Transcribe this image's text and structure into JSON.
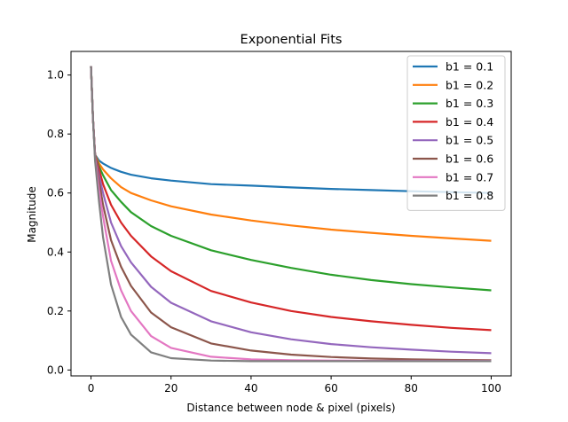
{
  "chart_data": {
    "type": "line",
    "title": "Exponential Fits",
    "xlabel": "Distance between node & pixel (pixels)",
    "ylabel": "Magnitude",
    "xlim": [
      -5,
      105
    ],
    "ylim": [
      -0.02,
      1.08
    ],
    "xticks": [
      0,
      20,
      40,
      60,
      80,
      100
    ],
    "yticks": [
      0.0,
      0.2,
      0.4,
      0.6,
      0.8,
      1.0
    ],
    "xtick_labels": [
      "0",
      "20",
      "40",
      "60",
      "80",
      "100"
    ],
    "ytick_labels": [
      "0.0",
      "0.2",
      "0.4",
      "0.6",
      "0.8",
      "1.0"
    ],
    "grid": false,
    "legend_position": "top-right",
    "x": [
      0,
      0.5,
      1,
      2,
      3,
      5,
      7.5,
      10,
      15,
      20,
      30,
      40,
      50,
      60,
      70,
      80,
      90,
      100
    ],
    "series": [
      {
        "name": "b1 = 0.1",
        "color": "#1f77b4",
        "values": [
          1.03,
          0.85,
          0.73,
          0.71,
          0.7,
          0.685,
          0.672,
          0.662,
          0.65,
          0.642,
          0.63,
          0.625,
          0.619,
          0.614,
          0.61,
          0.606,
          0.603,
          0.6
        ]
      },
      {
        "name": "b1 = 0.2",
        "color": "#ff7f0e",
        "values": [
          1.03,
          0.85,
          0.73,
          0.7,
          0.68,
          0.65,
          0.62,
          0.6,
          0.575,
          0.555,
          0.527,
          0.507,
          0.49,
          0.476,
          0.465,
          0.455,
          0.446,
          0.438
        ]
      },
      {
        "name": "b1 = 0.3",
        "color": "#2ca02c",
        "values": [
          1.03,
          0.85,
          0.73,
          0.69,
          0.66,
          0.61,
          0.57,
          0.535,
          0.488,
          0.455,
          0.406,
          0.373,
          0.346,
          0.323,
          0.305,
          0.291,
          0.28,
          0.27
        ]
      },
      {
        "name": "b1 = 0.4",
        "color": "#d62728",
        "values": [
          1.03,
          0.85,
          0.73,
          0.68,
          0.63,
          0.56,
          0.5,
          0.455,
          0.385,
          0.335,
          0.268,
          0.229,
          0.2,
          0.18,
          0.165,
          0.153,
          0.143,
          0.135
        ]
      },
      {
        "name": "b1 = 0.5",
        "color": "#9467bd",
        "values": [
          1.03,
          0.85,
          0.73,
          0.66,
          0.6,
          0.5,
          0.42,
          0.365,
          0.282,
          0.228,
          0.165,
          0.128,
          0.104,
          0.088,
          0.077,
          0.069,
          0.062,
          0.057
        ]
      },
      {
        "name": "b1 = 0.6",
        "color": "#8c564b",
        "values": [
          1.03,
          0.85,
          0.73,
          0.64,
          0.56,
          0.44,
          0.35,
          0.285,
          0.195,
          0.145,
          0.09,
          0.066,
          0.052,
          0.044,
          0.039,
          0.036,
          0.034,
          0.033
        ]
      },
      {
        "name": "b1 = 0.7",
        "color": "#e377c2",
        "values": [
          1.03,
          0.85,
          0.72,
          0.61,
          0.52,
          0.37,
          0.27,
          0.2,
          0.115,
          0.075,
          0.045,
          0.036,
          0.033,
          0.032,
          0.031,
          0.031,
          0.031,
          0.031
        ]
      },
      {
        "name": "b1 = 0.8",
        "color": "#7f7f7f",
        "values": [
          1.03,
          0.85,
          0.71,
          0.57,
          0.45,
          0.29,
          0.18,
          0.12,
          0.06,
          0.04,
          0.032,
          0.03,
          0.03,
          0.03,
          0.03,
          0.03,
          0.03,
          0.03
        ]
      }
    ]
  }
}
